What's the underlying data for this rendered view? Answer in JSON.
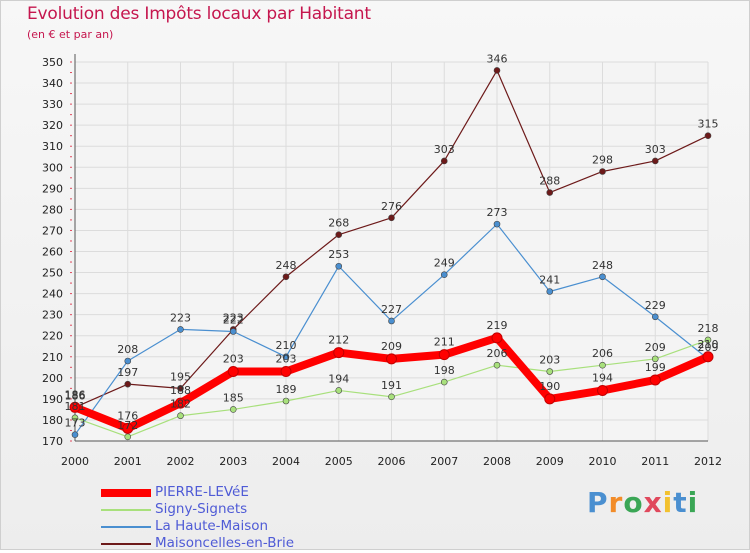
{
  "title": "Evolution des Impôts locaux par Habitant",
  "subtitle": "(en € et par an)",
  "logo_text": "Proxiti",
  "chart_data": {
    "type": "line",
    "x": [
      2000,
      2001,
      2002,
      2003,
      2004,
      2005,
      2006,
      2007,
      2008,
      2009,
      2010,
      2011,
      2012
    ],
    "ylim": [
      170,
      350
    ],
    "yticks": [
      170,
      180,
      190,
      200,
      210,
      220,
      230,
      240,
      250,
      260,
      270,
      280,
      290,
      300,
      310,
      320,
      330,
      340,
      350
    ],
    "grid": true,
    "legend_position": "bottom-left",
    "series": [
      {
        "name": "Maisoncelles-en-Brie",
        "color": "#6d1a1a",
        "values": [
          186,
          197,
          195,
          223,
          248,
          268,
          276,
          303,
          346,
          288,
          298,
          303,
          315
        ]
      },
      {
        "name": "La Haute-Maison",
        "color": "#4a8fd0",
        "values": [
          173,
          208,
          223,
          222,
          210,
          253,
          227,
          249,
          273,
          241,
          248,
          229,
          209
        ]
      },
      {
        "name": "Signy-Signets",
        "color": "#a8e07c",
        "values": [
          181,
          172,
          182,
          185,
          189,
          194,
          191,
          198,
          206,
          203,
          206,
          209,
          218
        ]
      },
      {
        "name": "PIERRE-LEVéE",
        "color": "#ff0000",
        "values": [
          186,
          176,
          188,
          203,
          203,
          212,
          209,
          211,
          219,
          190,
          194,
          199,
          210
        ]
      }
    ]
  }
}
